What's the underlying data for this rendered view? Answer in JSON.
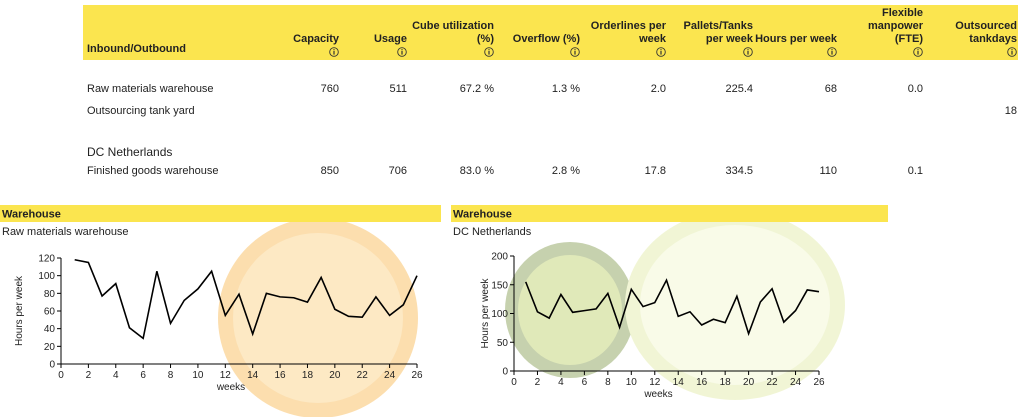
{
  "table": {
    "header": [
      "Inbound/Outbound",
      "Capacity",
      "Usage",
      "Cube utilization (%)",
      "Overflow (%)",
      "Orderlines per week",
      "Pallets/Tanks per week",
      "Hours per week",
      "Flexible manpower (FTE)",
      "Outsourced tankdays"
    ],
    "rows": [
      {
        "label": "Raw materials warehouse",
        "cells": [
          "760",
          "511",
          "67.2 %",
          "1.3 %",
          "2.0",
          "225.4",
          "68",
          "0.0",
          null
        ]
      },
      {
        "label": "Outsourcing tank yard",
        "cells": [
          null,
          null,
          null,
          null,
          null,
          null,
          null,
          null,
          "18"
        ]
      },
      {
        "group": "DC Netherlands"
      },
      {
        "label": "Finished goods warehouse",
        "cells": [
          "850",
          "706",
          "83.0 %",
          "2.8 %",
          "17.8",
          "334.5",
          "110",
          "0.1",
          null
        ]
      }
    ]
  },
  "chart_data": [
    {
      "type": "line",
      "title": "Warehouse",
      "subtitle": "Raw materials warehouse",
      "xlabel": "weeks",
      "ylabel": "Hours per week",
      "color": "#000000",
      "x": [
        1,
        2,
        3,
        4,
        5,
        6,
        7,
        8,
        9,
        10,
        11,
        12,
        13,
        14,
        15,
        16,
        17,
        18,
        19,
        20,
        21,
        22,
        23,
        24,
        25,
        26
      ],
      "values": [
        118,
        115,
        77,
        91,
        41,
        29,
        105,
        46,
        72,
        85,
        105,
        55,
        79,
        34,
        80,
        76,
        75,
        70,
        98,
        62,
        54,
        53,
        76,
        55,
        67,
        100
      ],
      "xlim": [
        0,
        26
      ],
      "xticks": [
        0,
        2,
        4,
        6,
        8,
        10,
        12,
        14,
        16,
        18,
        20,
        22,
        24,
        26
      ],
      "ylim": [
        0,
        120
      ],
      "yticks": [
        0,
        20,
        40,
        60,
        80,
        100,
        120
      ]
    },
    {
      "type": "line",
      "title": "Warehouse",
      "subtitle": "DC Netherlands",
      "xlabel": "weeks",
      "ylabel": "Hours per week",
      "color": "#000000",
      "x": [
        1,
        2,
        3,
        4,
        5,
        6,
        7,
        8,
        9,
        10,
        11,
        12,
        13,
        14,
        15,
        16,
        17,
        18,
        19,
        20,
        21,
        22,
        23,
        24,
        25,
        26
      ],
      "values": [
        155,
        103,
        92,
        133,
        102,
        105,
        108,
        135,
        76,
        142,
        112,
        119,
        158,
        95,
        103,
        80,
        90,
        84,
        130,
        65,
        120,
        143,
        85,
        105,
        141,
        138
      ],
      "xlim": [
        0,
        26
      ],
      "xticks": [
        0,
        2,
        4,
        6,
        8,
        10,
        12,
        14,
        16,
        18,
        20,
        22,
        24,
        26
      ],
      "ylim": [
        0,
        200
      ],
      "yticks": [
        0,
        50,
        100,
        150,
        200
      ]
    }
  ]
}
